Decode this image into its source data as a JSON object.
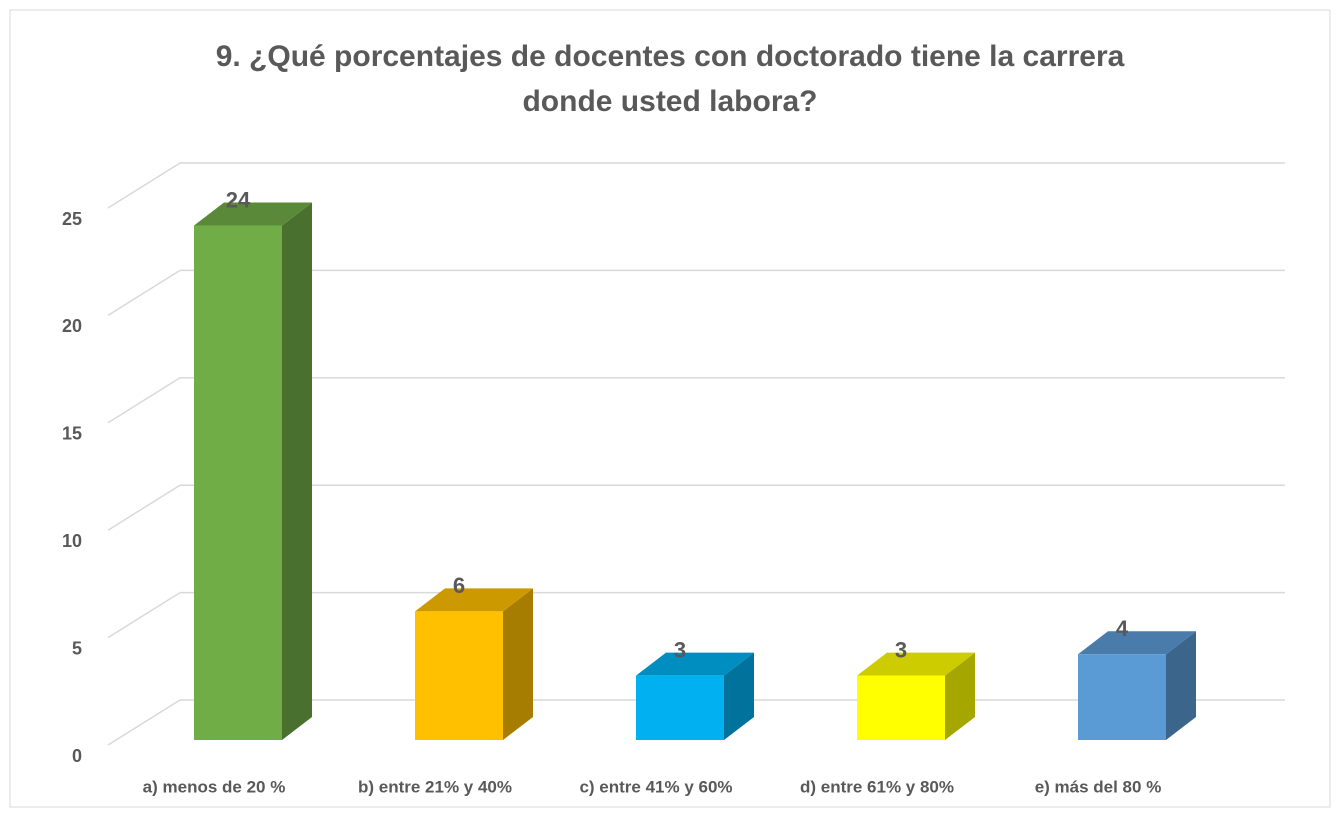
{
  "chart_data": {
    "type": "bar3d",
    "title": [
      "9. ¿Qué porcentajes  de docentes con doctorado tiene la carrera",
      "donde usted labora?"
    ],
    "categories": [
      "a)    menos de 20 %",
      "b) entre 21% y 40%",
      "c) entre 41% y 60%",
      "d)  entre 61% y 80%",
      "e) más del 80 %"
    ],
    "values": [
      24,
      6,
      3,
      3,
      4
    ],
    "colors": [
      "#70ad47",
      "#ffc000",
      "#00b0f0",
      "#ffff00",
      "#5b9bd5"
    ],
    "ylim": [
      0,
      25
    ],
    "yticks": [
      0,
      5,
      10,
      15,
      20,
      25
    ],
    "grid": true
  }
}
